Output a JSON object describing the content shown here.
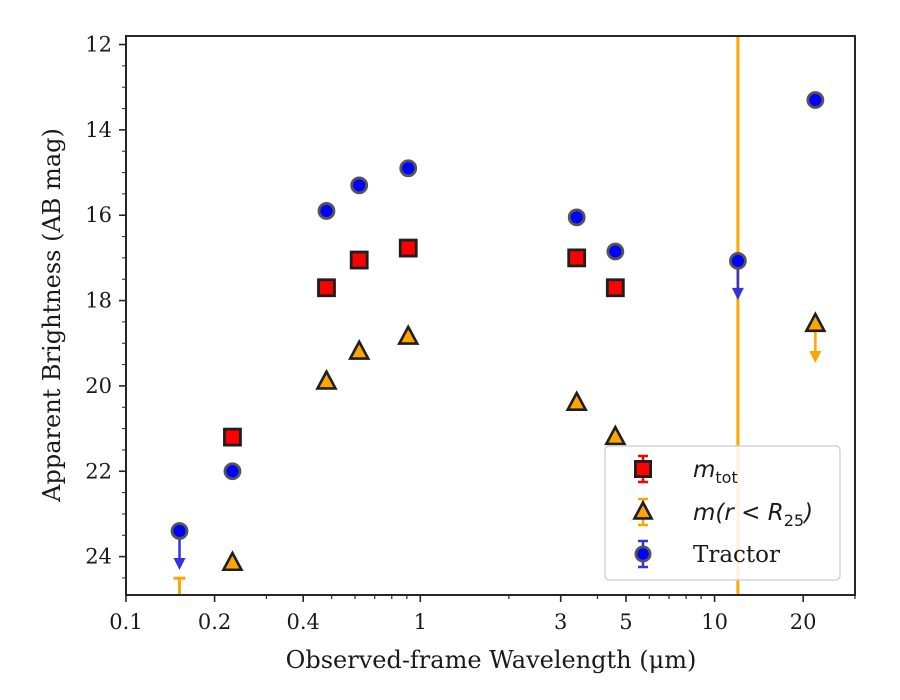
{
  "chart_data": {
    "type": "scatter",
    "title": "",
    "xlabel": "Observed-frame Wavelength (μm)",
    "ylabel": "Apparent Brightness (AB mag)",
    "xscale": "log",
    "xlim": [
      0.1,
      30
    ],
    "ylim": [
      24.9,
      11.8
    ],
    "y_inverted": true,
    "x_ticks": [
      0.1,
      0.2,
      0.4,
      1,
      3,
      5,
      10,
      20
    ],
    "x_tick_labels": [
      "0.1",
      "0.2",
      "0.4",
      "1",
      "3",
      "5",
      "10",
      "20"
    ],
    "y_ticks": [
      12,
      14,
      16,
      18,
      20,
      22,
      24
    ],
    "y_tick_labels": [
      "12",
      "14",
      "16",
      "18",
      "20",
      "22",
      "24"
    ],
    "grid": false,
    "legend_position": "bottom-right",
    "reference_line": {
      "x": 12.0,
      "color": "#ffa500"
    },
    "series": [
      {
        "name": "m_tot",
        "legend_main": "m",
        "legend_sub": "tot",
        "marker": "square",
        "color": "#ff0000",
        "points": [
          {
            "x": 0.23,
            "y": 21.2
          },
          {
            "x": 0.48,
            "y": 17.7
          },
          {
            "x": 0.62,
            "y": 17.05
          },
          {
            "x": 0.91,
            "y": 16.77
          },
          {
            "x": 3.4,
            "y": 17.0
          },
          {
            "x": 4.6,
            "y": 17.7
          }
        ]
      },
      {
        "name": "m(r < R_25)",
        "legend_main": "m(r < R",
        "legend_sub": "25",
        "legend_tail": ")",
        "marker": "triangle",
        "color": "#ffa500",
        "points": [
          {
            "x": 0.152,
            "y": 24.6,
            "upper_limit": true
          },
          {
            "x": 0.23,
            "y": 24.15
          },
          {
            "x": 0.48,
            "y": 19.9
          },
          {
            "x": 0.62,
            "y": 19.2
          },
          {
            "x": 0.91,
            "y": 18.85
          },
          {
            "x": 3.4,
            "y": 20.4
          },
          {
            "x": 4.6,
            "y": 21.2
          },
          {
            "x": 22.0,
            "y": 18.55,
            "upper_limit": true
          }
        ]
      },
      {
        "name": "Tractor",
        "legend_main": "Tractor",
        "marker": "circle",
        "color": "#0000ff",
        "points": [
          {
            "x": 0.152,
            "y": 23.4,
            "upper_limit": true
          },
          {
            "x": 0.23,
            "y": 22.0
          },
          {
            "x": 0.48,
            "y": 15.9
          },
          {
            "x": 0.62,
            "y": 15.3
          },
          {
            "x": 0.91,
            "y": 14.9
          },
          {
            "x": 3.4,
            "y": 16.05
          },
          {
            "x": 4.6,
            "y": 16.85
          },
          {
            "x": 12.0,
            "y": 17.07,
            "upper_limit": true
          },
          {
            "x": 22.0,
            "y": 13.3
          }
        ]
      }
    ]
  }
}
